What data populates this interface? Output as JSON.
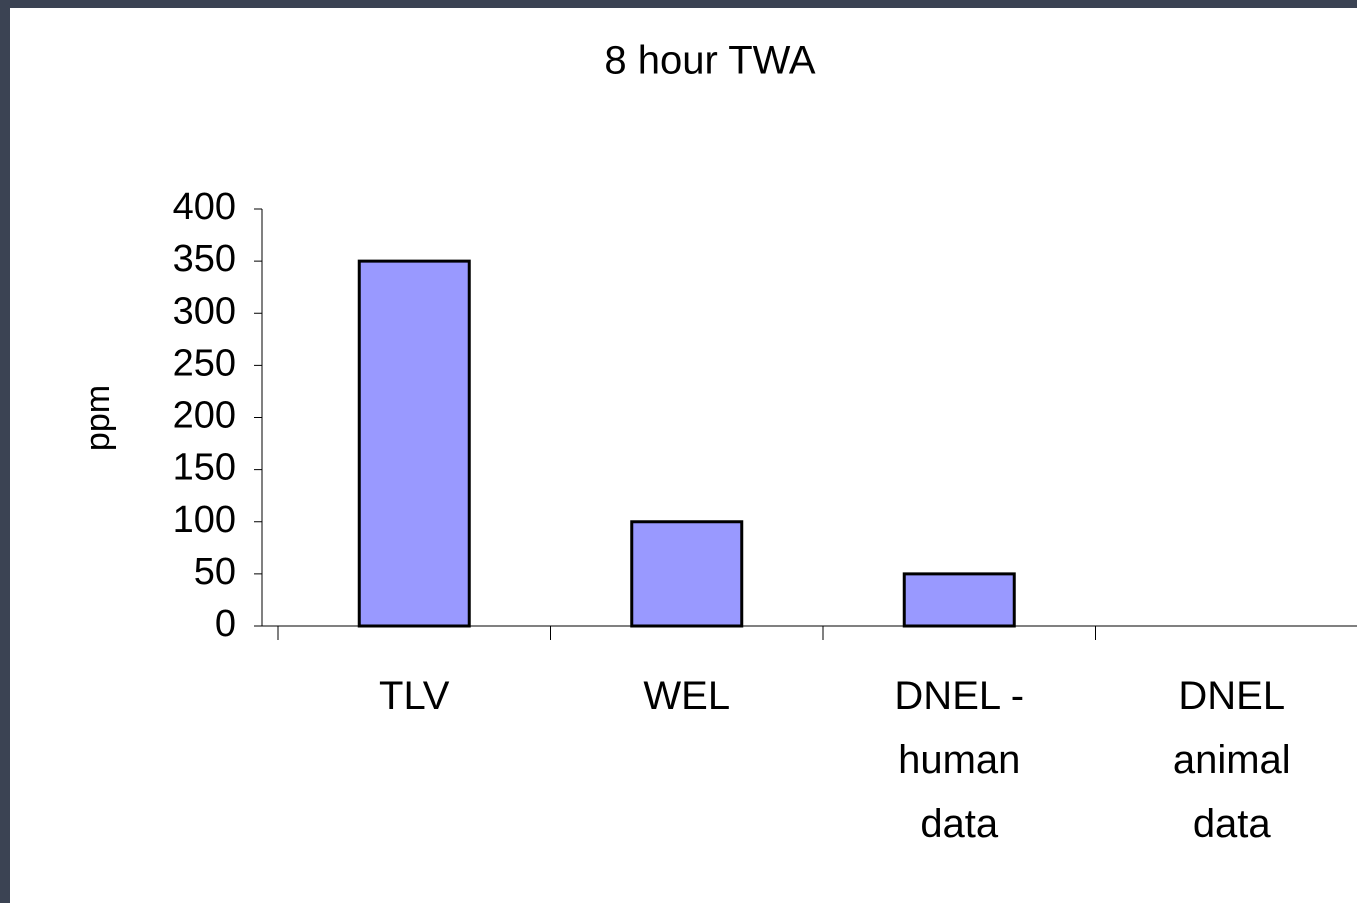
{
  "chart_data": {
    "type": "bar",
    "title": "8 hour TWA",
    "y_label": "ppm",
    "categories": [
      "TLV",
      "WEL",
      "DNEL -\nhuman\ndata",
      "DNEL\nanimal\ndata"
    ],
    "values": [
      350,
      100,
      50,
      null
    ],
    "color": "#9999ff",
    "ylim": [
      0,
      400
    ],
    "yticks": [
      0,
      50,
      100,
      150,
      200,
      250,
      300,
      350,
      400
    ],
    "grid": false
  }
}
